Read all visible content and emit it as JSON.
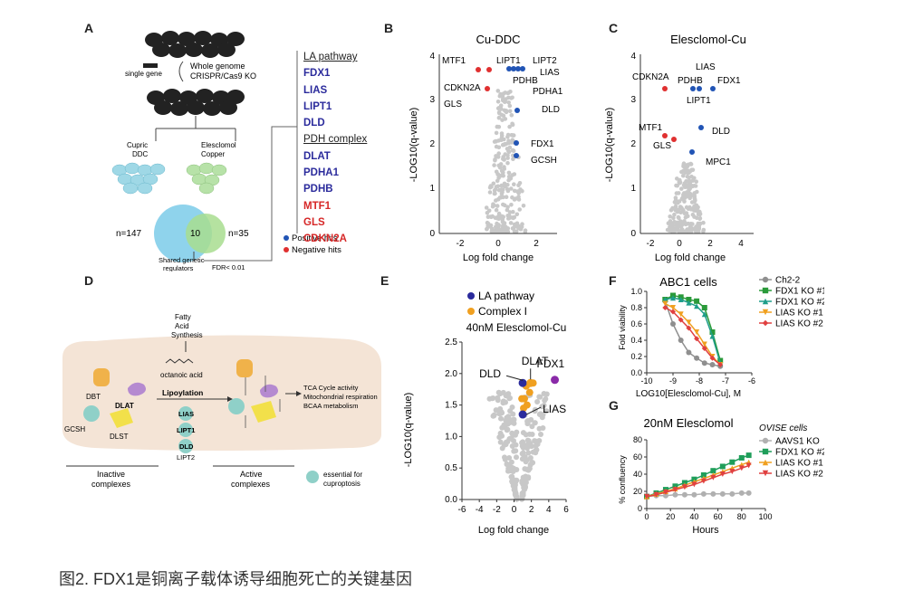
{
  "panel_labels": {
    "a": "A",
    "b": "B",
    "c": "C",
    "d": "D",
    "e": "E",
    "f": "F",
    "g": "G"
  },
  "panel_a": {
    "single_gene": "single gene",
    "screen_line1": "Whole genome",
    "screen_line2": "CRISPR/Cas9 KO",
    "cupric_line1": "Cupric",
    "cupric_line2": "DDC",
    "elesclomol_line1": "Elesclomol",
    "elesclomol_line2": "Copper",
    "venn_left": "n=147",
    "venn_center": "10",
    "venn_right": "n=35",
    "shared_line1": "Shared genetic",
    "shared_line2": "regulators",
    "fdr": "FDR< 0.01",
    "la_header": "LA pathway",
    "la_genes": [
      "FDX1",
      "LIAS",
      "LIPT1",
      "DLD"
    ],
    "pdh_header": "PDH complex",
    "pdh_genes": [
      "DLAT",
      "PDHA1",
      "PDHB"
    ],
    "neg_genes": [
      "MTF1",
      "GLS",
      "CDKN2A"
    ],
    "legend_pos": "Positive hits",
    "legend_neg": "Negative hits"
  },
  "panel_b": {
    "title": "Cu-DDC",
    "xlabel": "Log fold change",
    "ylabel": "-LOG10(q-value)",
    "xticks": [
      "-2",
      "0",
      "2"
    ],
    "yticks": [
      "0",
      "1",
      "2",
      "3",
      "4"
    ],
    "labels": [
      "MTF1",
      "LIPT1",
      "LIPT2",
      "LIAS",
      "PDHB",
      "PDHA1",
      "CDKN2A",
      "GLS",
      "DLD",
      "FDX1",
      "GCSH"
    ]
  },
  "panel_c": {
    "title": "Elesclomol-Cu",
    "xlabel": "Log fold change",
    "ylabel": "-LOG10(q-value)",
    "xticks": [
      "-2",
      "0",
      "2",
      "4"
    ],
    "yticks": [
      "0",
      "1",
      "2",
      "3",
      "4"
    ],
    "labels": [
      "LIAS",
      "CDKN2A",
      "PDHB",
      "FDX1",
      "LIPT1",
      "MTF1",
      "DLD",
      "GLS",
      "MPC1"
    ]
  },
  "panel_d": {
    "fatty1": "Fatty",
    "fatty2": "Acid",
    "fatty3": "Synthesis",
    "octanoic": "octanoic acid",
    "lipoylation": "Lipoylation",
    "lias": "LIAS",
    "lipt1": "LIPT1",
    "dld": "DLD",
    "lipt2": "LIPT2",
    "dbt": "DBT",
    "dlat": "DLAT",
    "gcsh": "GCSH",
    "dlst": "DLST",
    "tca1": "TCA Cycle activity",
    "tca2": "Mitochondrial respiration",
    "tca3": "BCAA metabolism",
    "inactive1": "Inactive",
    "inactive2": "complexes",
    "active1": "Active",
    "active2": "complexes",
    "essential1": "essential for",
    "essential2": "cuproptosis"
  },
  "chart_data": [
    {
      "panel": "E",
      "type": "scatter",
      "title": "40nM Elesclomol-Cu",
      "xlabel": "Log fold change",
      "ylabel": "-LOG10(q-value)",
      "xlim": [
        -6,
        6
      ],
      "ylim": [
        0,
        2.5
      ],
      "xticks": [
        "-6",
        "-4",
        "-2",
        "0",
        "2",
        "4",
        "6"
      ],
      "yticks": [
        "0.0",
        "0.5",
        "1.0",
        "1.5",
        "2.0",
        "2.5"
      ],
      "legend": [
        "LA  pathway",
        "Complex I"
      ],
      "colors": {
        "la": "#2b2b9c",
        "complex1": "#f0a020",
        "highlight": "#8a2aa8",
        "bg": "#c8c8c8"
      },
      "highlights": [
        {
          "label": "DLD",
          "x": 1.0,
          "y": 1.85
        },
        {
          "label": "DLAT",
          "x": 1.9,
          "y": 1.85
        },
        {
          "label": "FDX1",
          "x": 4.7,
          "y": 1.9
        },
        {
          "label": "LIAS",
          "x": 1.0,
          "y": 1.35
        }
      ],
      "complex1_points": [
        [
          1.2,
          1.6
        ],
        [
          1.5,
          1.5
        ],
        [
          1.1,
          1.45
        ],
        [
          1.8,
          1.7
        ],
        [
          2.2,
          1.85
        ],
        [
          1.4,
          1.8
        ],
        [
          0.9,
          1.6
        ]
      ]
    },
    {
      "panel": "F",
      "type": "line",
      "title": "ABC1 cells",
      "xlabel": "LOG10[Elesclomol-Cu], M",
      "ylabel": "Fold viability",
      "xlim": [
        -10,
        -6
      ],
      "ylim": [
        0,
        1.0
      ],
      "xticks": [
        "-10",
        "-9",
        "-8",
        "-7",
        "-6"
      ],
      "yticks": [
        "0.0",
        "0.2",
        "0.4",
        "0.6",
        "0.8",
        "1.0"
      ],
      "x": [
        -9.3,
        -9.0,
        -8.7,
        -8.4,
        -8.1,
        -7.8,
        -7.5,
        -7.2
      ],
      "series": [
        {
          "name": "Ch2-2",
          "color": "#8f8f8f",
          "values": [
            0.88,
            0.6,
            0.4,
            0.25,
            0.18,
            0.12,
            0.1,
            0.08
          ]
        },
        {
          "name": "FDX1 KO #1",
          "color": "#2a9a3a",
          "values": [
            0.9,
            0.95,
            0.93,
            0.9,
            0.88,
            0.8,
            0.5,
            0.15
          ]
        },
        {
          "name": "FDX1 KO #2",
          "color": "#1f9e8a",
          "values": [
            0.9,
            0.92,
            0.9,
            0.86,
            0.82,
            0.72,
            0.45,
            0.12
          ]
        },
        {
          "name": "LIAS KO #1",
          "color": "#f0a020",
          "values": [
            0.85,
            0.8,
            0.72,
            0.62,
            0.5,
            0.35,
            0.2,
            0.1
          ]
        },
        {
          "name": "LIAS KO #2",
          "color": "#e04040",
          "values": [
            0.8,
            0.75,
            0.65,
            0.55,
            0.42,
            0.3,
            0.18,
            0.1
          ]
        }
      ]
    },
    {
      "panel": "G",
      "type": "line",
      "title": "20nM Elesclomol",
      "legend_title": "OVISE cells",
      "xlabel": "Hours",
      "ylabel": "% confluency",
      "xlim": [
        0,
        100
      ],
      "ylim": [
        0,
        80
      ],
      "xticks": [
        "0",
        "20",
        "40",
        "60",
        "80",
        "100"
      ],
      "yticks": [
        "0",
        "20",
        "40",
        "60",
        "80"
      ],
      "x": [
        0,
        8,
        16,
        24,
        32,
        40,
        48,
        56,
        64,
        72,
        80,
        86
      ],
      "series": [
        {
          "name": "AAVS1 KO",
          "color": "#b0b0b0",
          "values": [
            14,
            15,
            15,
            16,
            16,
            16,
            17,
            17,
            17,
            17,
            18,
            18
          ]
        },
        {
          "name": "FDX1 KO #2",
          "color": "#1f9e5a",
          "values": [
            14,
            18,
            22,
            26,
            30,
            34,
            39,
            44,
            49,
            54,
            59,
            62
          ]
        },
        {
          "name": "LIAS KO #1",
          "color": "#f0a020",
          "values": [
            14,
            17,
            20,
            23,
            27,
            31,
            35,
            39,
            43,
            47,
            51,
            54
          ]
        },
        {
          "name": "LIAS KO #2",
          "color": "#e04040",
          "values": [
            14,
            16,
            19,
            22,
            25,
            28,
            32,
            36,
            40,
            43,
            47,
            50
          ]
        }
      ]
    }
  ],
  "caption": "图2. FDX1是铜离子载体诱导细胞死亡的关键基因"
}
